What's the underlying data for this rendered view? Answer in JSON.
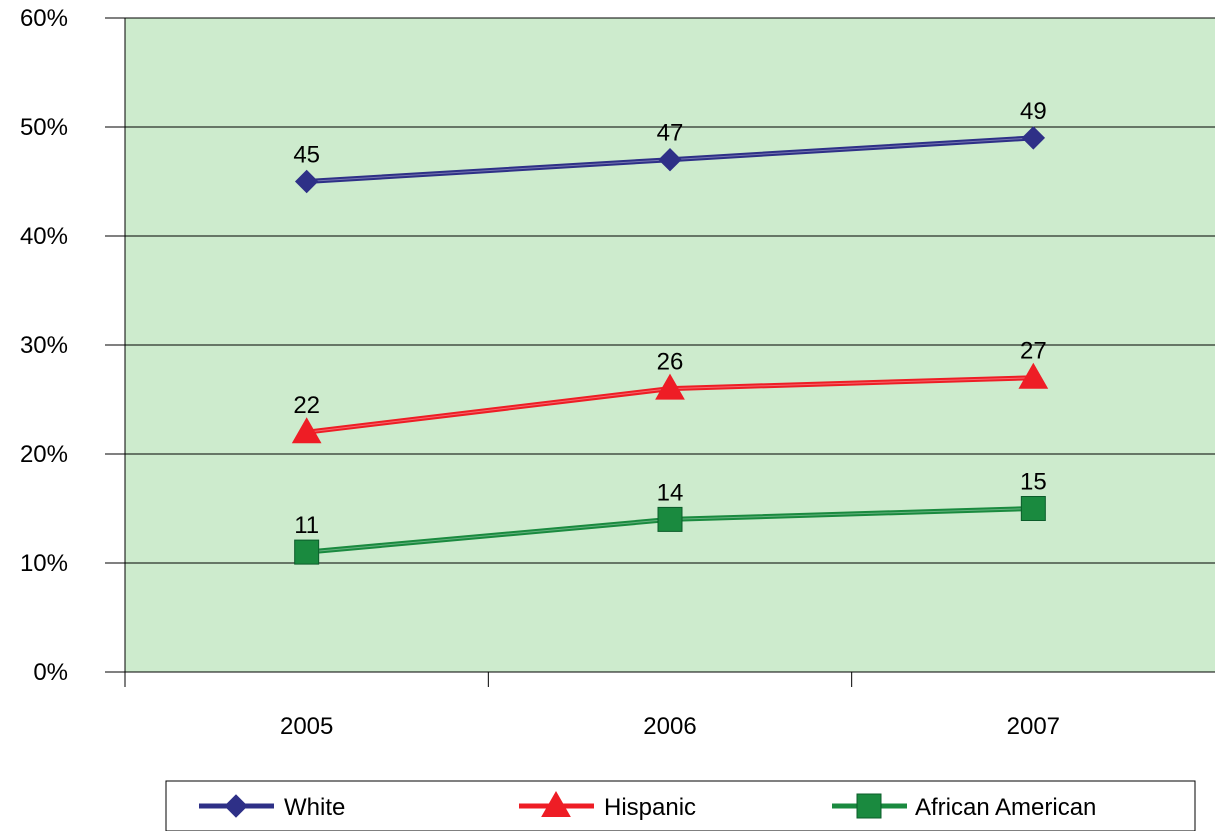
{
  "chart_data": {
    "type": "line",
    "categories": [
      "2005",
      "2006",
      "2007"
    ],
    "ylim": [
      0,
      60
    ],
    "yticks": [
      "0%",
      "10%",
      "20%",
      "30%",
      "40%",
      "50%",
      "60%"
    ],
    "grid": "horizontal",
    "legend_position": "bottom",
    "plot_background": "#cdebcd",
    "series": [
      {
        "name": "White",
        "values": [
          45,
          47,
          49
        ],
        "labels": [
          "45",
          "47",
          "49"
        ],
        "color": "#2e3087",
        "marker": "diamond"
      },
      {
        "name": "Hispanic",
        "values": [
          22,
          26,
          27
        ],
        "labels": [
          "22",
          "26",
          "27"
        ],
        "color": "#ee1d25",
        "marker": "triangle"
      },
      {
        "name": "African American",
        "values": [
          11,
          14,
          15
        ],
        "labels": [
          "11",
          "14",
          "15"
        ],
        "color": "#1a8a3f",
        "marker": "square"
      }
    ]
  }
}
